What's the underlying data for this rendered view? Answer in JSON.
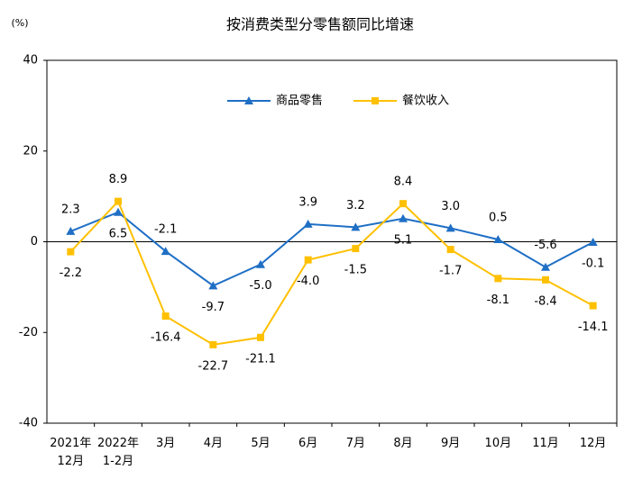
{
  "chart_data": {
    "type": "line",
    "title": "按消费类型分零售额同比增速",
    "y_unit_label": "(%)",
    "categories": [
      "2021年\n12月",
      "2022年\n1-2月",
      "3月",
      "4月",
      "5月",
      "6月",
      "7月",
      "8月",
      "9月",
      "10月",
      "11月",
      "12月"
    ],
    "series": [
      {
        "name": "商品零售",
        "color": "#1f6fc5",
        "marker": "triangle",
        "values": [
          2.3,
          6.5,
          -2.1,
          -9.7,
          -5.0,
          3.9,
          3.2,
          5.1,
          3.0,
          0.5,
          -5.6,
          -0.1
        ],
        "value_labels": [
          "2.3",
          "6.5",
          "-2.1",
          "-9.7",
          "-5.0",
          "3.9",
          "3.2",
          "5.1",
          "3.0",
          "0.5",
          "-5.6",
          "-0.1"
        ]
      },
      {
        "name": "餐饮收入",
        "color": "#ffc000",
        "marker": "square",
        "values": [
          -2.2,
          8.9,
          -16.4,
          -22.7,
          -21.1,
          -4.0,
          -1.5,
          8.4,
          -1.7,
          -8.1,
          -8.4,
          -14.1
        ],
        "value_labels": [
          "-2.2",
          "8.9",
          "-16.4",
          "-22.7",
          "-21.1",
          "-4.0",
          "-1.5",
          "8.4",
          "-1.7",
          "-8.1",
          "-8.4",
          "-14.1"
        ]
      }
    ],
    "ylim": [
      -40,
      40
    ],
    "yticks": [
      -40,
      -20,
      0,
      20,
      40
    ],
    "grid": false,
    "legend": "top"
  }
}
